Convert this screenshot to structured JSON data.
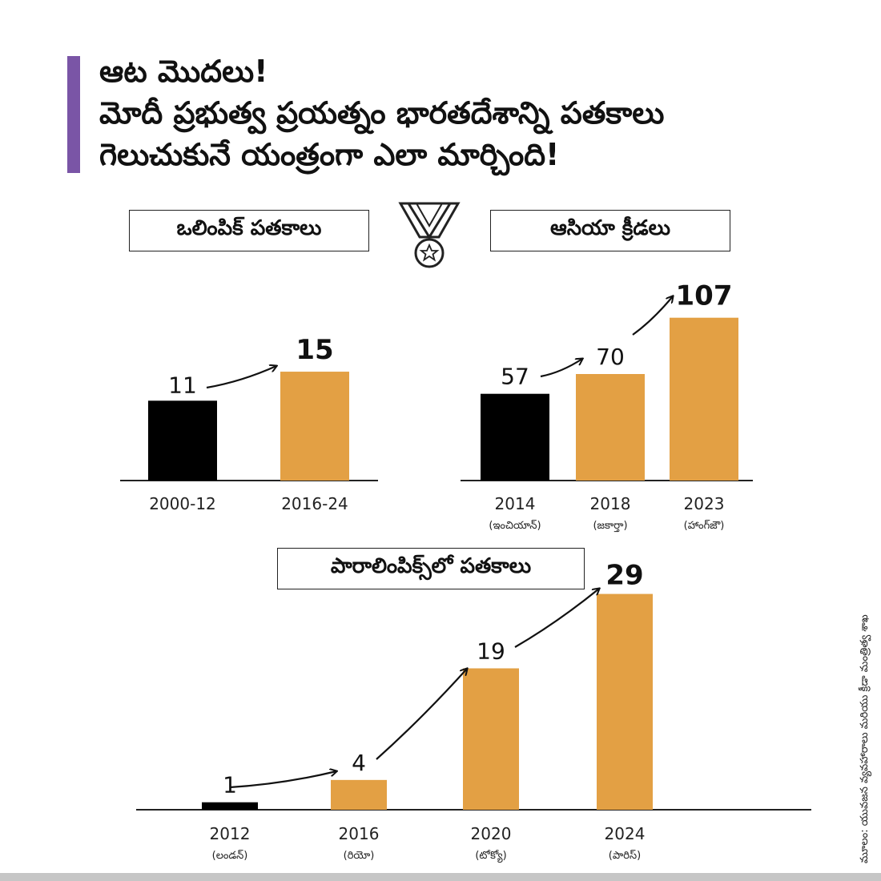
{
  "title_lines": [
    "ఆట మొదలు!",
    "మోదీ ప్రభుత్వ ప్రయత్నం భారతదేశాన్ని పతకాలు",
    "గెలుచుకునే యంత్రంగా ఎలా మార్చింది!"
  ],
  "colors": {
    "accent": "#7a55a6",
    "before": "#000000",
    "after": "#e3a044",
    "strip": "#c6c6c6"
  },
  "icon": "medal-icon",
  "source": "మూలం: యువజన వ్యవహారాలు మరియు క్రీడా మంత్రిత్వ శాఖ",
  "chart_data": [
    {
      "type": "bar",
      "title": "ఒలింపిక్ పతకాలు",
      "categories": [
        "2000-12",
        "2016-24"
      ],
      "sublabels": [
        "",
        ""
      ],
      "values": [
        11,
        15
      ],
      "ylim": [
        0,
        16
      ]
    },
    {
      "type": "bar",
      "title": "ఆసియా క్రీడలు",
      "categories": [
        "2014",
        "2018",
        "2023"
      ],
      "sublabels": [
        "(ఇంచియాన్)",
        "(జకార్తా)",
        "(హాంగ్‌జౌ)"
      ],
      "values": [
        57,
        70,
        107
      ],
      "ylim": [
        0,
        120
      ]
    },
    {
      "type": "bar",
      "title": "పారాలింపిక్స్‌లో పతకాలు",
      "categories": [
        "2012",
        "2016",
        "2020",
        "2024"
      ],
      "sublabels": [
        "(లండన్)",
        "(రియో)",
        "(టోక్యో)",
        "(పారిస్)"
      ],
      "values": [
        1,
        4,
        19,
        29
      ],
      "ylim": [
        0,
        31
      ]
    }
  ]
}
